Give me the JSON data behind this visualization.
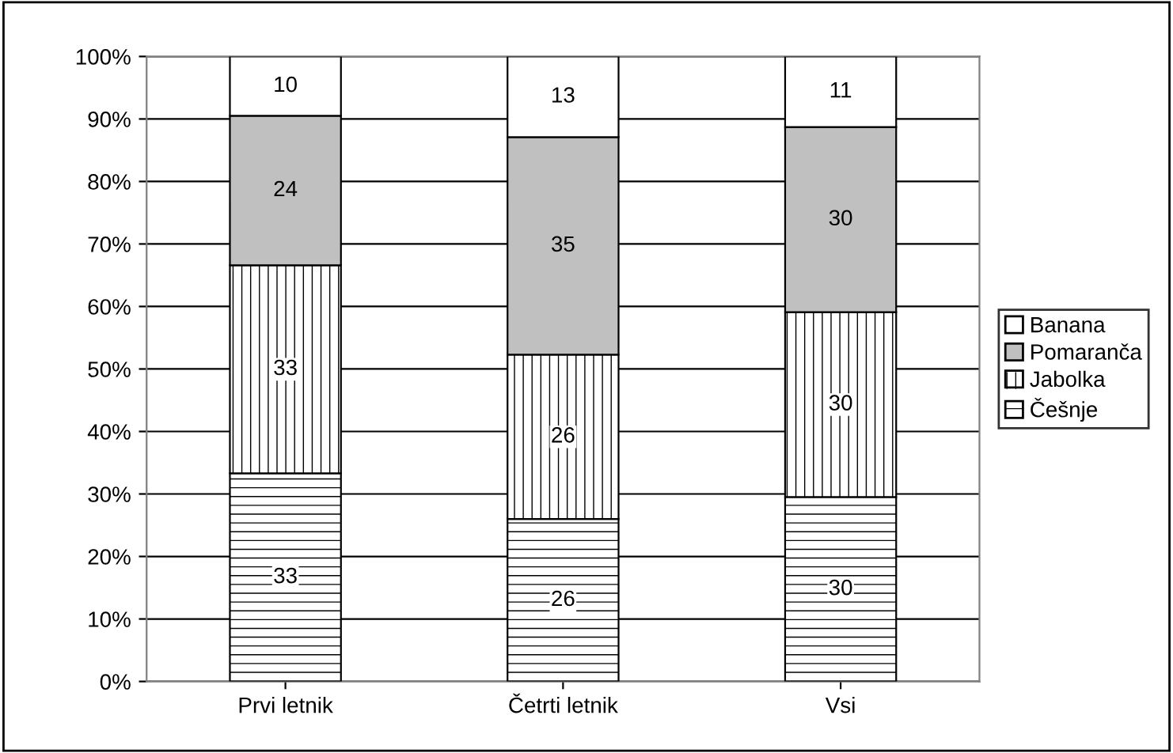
{
  "chart_data": {
    "type": "bar",
    "stacked": true,
    "categories": [
      "Prvi letnik",
      "Četrti letnik",
      "Vsi"
    ],
    "series": [
      {
        "name": "Češnje",
        "color": "#ffffff",
        "values": [
          33.3,
          26,
          29.5
        ],
        "value_labels": [
          "33",
          "26",
          "30"
        ]
      },
      {
        "name": "Jabolka",
        "color": "#ffffff",
        "values": [
          33.3,
          26.3,
          29.6
        ],
        "value_labels": [
          "33",
          "26",
          "30"
        ]
      },
      {
        "name": "Pomaranča",
        "color": "#c0c0c0",
        "values": [
          23.9,
          34.8,
          29.6
        ],
        "value_labels": [
          "24",
          "35",
          "30"
        ]
      },
      {
        "name": "Banana",
        "color": "#ffffff",
        "values": [
          9.5,
          12.9,
          11.3
        ],
        "value_labels": [
          "10",
          "13",
          "11"
        ]
      }
    ],
    "ylim": [
      0,
      100
    ],
    "yticks": [
      {
        "value": 0,
        "label": "0%"
      },
      {
        "value": 10,
        "label": "10%"
      },
      {
        "value": 20,
        "label": "20%"
      },
      {
        "value": 30,
        "label": "30%"
      },
      {
        "value": 40,
        "label": "40%"
      },
      {
        "value": 50,
        "label": "50%"
      },
      {
        "value": 60,
        "label": "60%"
      },
      {
        "value": 70,
        "label": "70%"
      },
      {
        "value": 80,
        "label": "80%"
      },
      {
        "value": 90,
        "label": "90%"
      },
      {
        "value": 100,
        "label": "100%"
      }
    ],
    "grid": "y",
    "legend": "right"
  }
}
